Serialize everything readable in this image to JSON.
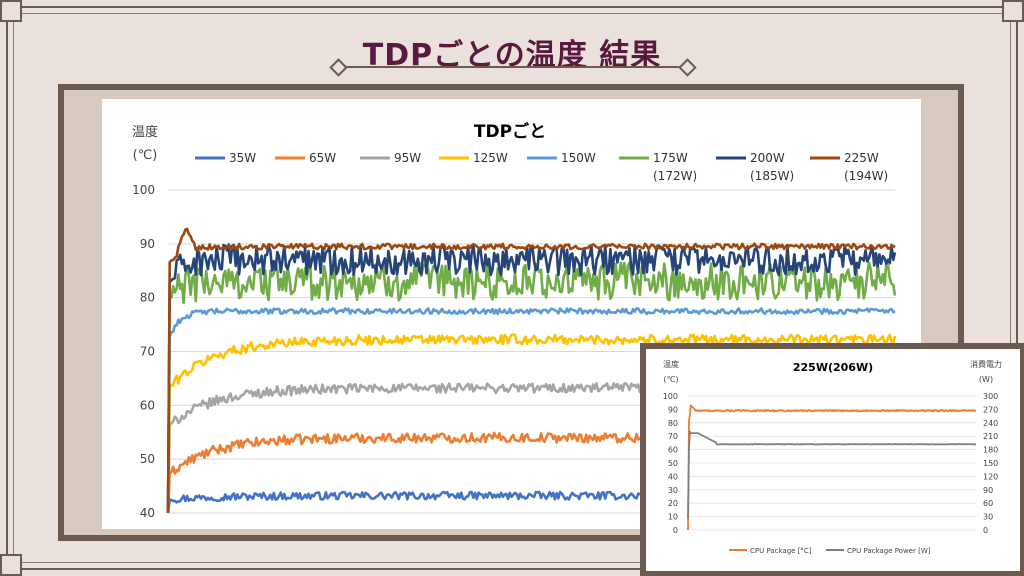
{
  "slide": {
    "title": "TDPごとの温度 結果"
  },
  "chart_data": [
    {
      "type": "line",
      "title": "TDPごと",
      "ylabel_line1": "温度",
      "ylabel_line2": "(℃)",
      "ylim": [
        40,
        100
      ],
      "yticks": [
        40,
        50,
        60,
        70,
        80,
        90,
        100
      ],
      "grid": true,
      "legend_position": "top",
      "series": [
        {
          "name": "35W",
          "subname": "",
          "color": "#4472c4",
          "start": 42.5,
          "level": 43.2,
          "noise": 0.7
        },
        {
          "name": "65W",
          "subname": "",
          "color": "#ed7d31",
          "start": 47,
          "level": 54,
          "noise": 0.9
        },
        {
          "name": "95W",
          "subname": "",
          "color": "#a5a5a5",
          "start": 56,
          "level": 63.2,
          "noise": 0.9
        },
        {
          "name": "125W",
          "subname": "",
          "color": "#ffc000",
          "start": 63,
          "level": 72.2,
          "noise": 0.9
        },
        {
          "name": "150W",
          "subname": "",
          "color": "#5b9bd5",
          "start": 72,
          "level": 77.5,
          "noise": 0.5
        },
        {
          "name": "175W",
          "subname": "(172W)",
          "color": "#70ad47",
          "start": 79,
          "level": 83,
          "noise": 3.5
        },
        {
          "name": "200W",
          "subname": "(185W)",
          "color": "#264478",
          "start": 82,
          "level": 87,
          "noise": 2.8
        },
        {
          "name": "225W",
          "subname": "(194W)",
          "color": "#9e480e",
          "start": 86,
          "level": 89.5,
          "noise": 0.5
        }
      ]
    },
    {
      "type": "line",
      "title": "225W(206W)",
      "ylabel_line1": "温度",
      "ylabel_line2": "(℃)",
      "y2label_line1": "消費電力",
      "y2label_line2": "(W)",
      "ylim": [
        0,
        100
      ],
      "yticks": [
        0,
        10,
        20,
        30,
        40,
        50,
        60,
        70,
        80,
        90,
        100
      ],
      "y2lim": [
        0,
        300
      ],
      "y2ticks": [
        0,
        30,
        60,
        90,
        120,
        150,
        180,
        210,
        240,
        270,
        300
      ],
      "grid": true,
      "legend_position": "bottom",
      "series": [
        {
          "name": "CPU Package [°C]",
          "color": "#ed7d31",
          "axis": "left",
          "level": 89,
          "noise": 0.5
        },
        {
          "name": "CPU Package Power [W]",
          "color": "#7f7f7f",
          "axis": "right",
          "level": 192,
          "noise": 0.6
        }
      ]
    }
  ]
}
